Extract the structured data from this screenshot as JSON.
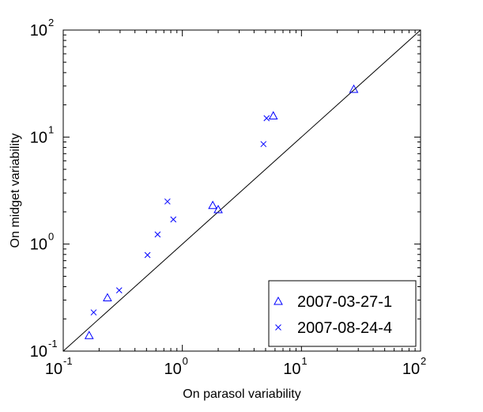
{
  "chart_data": {
    "type": "scatter",
    "xlabel": "On parasol variability",
    "ylabel": "On midget variability",
    "xscale": "log",
    "yscale": "log",
    "xlim": [
      0.1,
      100
    ],
    "ylim": [
      0.1,
      100
    ],
    "grid": false,
    "legend_position": "bottom-right",
    "x_ticks": [
      {
        "value": 0.1,
        "base": "10",
        "exp": "-1"
      },
      {
        "value": 1,
        "base": "10",
        "exp": "0"
      },
      {
        "value": 10,
        "base": "10",
        "exp": "1"
      },
      {
        "value": 100,
        "base": "10",
        "exp": "2"
      }
    ],
    "y_ticks": [
      {
        "value": 0.1,
        "base": "10",
        "exp": "-1"
      },
      {
        "value": 1,
        "base": "10",
        "exp": "0"
      },
      {
        "value": 10,
        "base": "10",
        "exp": "1"
      },
      {
        "value": 100,
        "base": "10",
        "exp": "2"
      }
    ],
    "reference_line": {
      "type": "identity",
      "color": "#000000"
    },
    "series": [
      {
        "name": "2007-03-27-1",
        "marker": "triangle",
        "color": "#0000ff",
        "points": [
          {
            "x": 0.165,
            "y": 0.14
          },
          {
            "x": 0.235,
            "y": 0.315
          },
          {
            "x": 1.8,
            "y": 2.3
          },
          {
            "x": 2.0,
            "y": 2.1
          },
          {
            "x": 5.8,
            "y": 15.8
          },
          {
            "x": 27.5,
            "y": 28.0
          }
        ]
      },
      {
        "name": "2007-08-24-4",
        "marker": "x",
        "color": "#0000ff",
        "points": [
          {
            "x": 0.18,
            "y": 0.23
          },
          {
            "x": 0.295,
            "y": 0.37
          },
          {
            "x": 0.51,
            "y": 0.79
          },
          {
            "x": 0.62,
            "y": 1.23
          },
          {
            "x": 0.75,
            "y": 2.5
          },
          {
            "x": 0.84,
            "y": 1.7
          },
          {
            "x": 4.8,
            "y": 8.6
          },
          {
            "x": 5.1,
            "y": 15.0
          }
        ]
      }
    ]
  }
}
